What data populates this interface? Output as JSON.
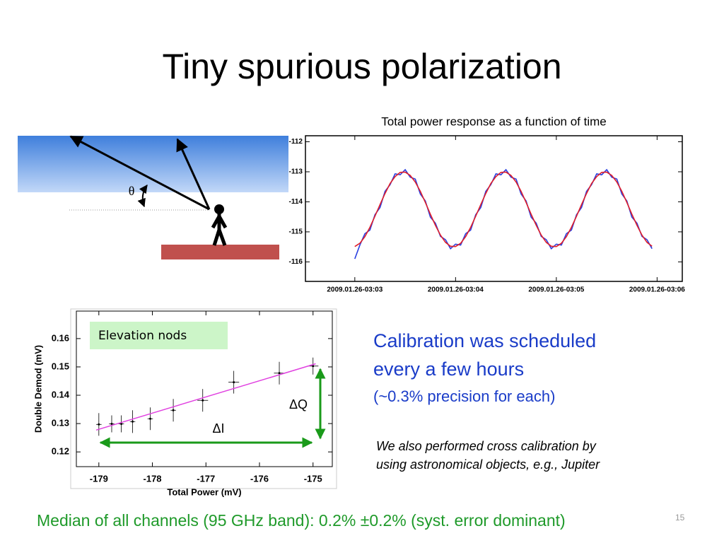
{
  "title": "Tiny spurious polarization",
  "diagram": {
    "angle_label": "θ"
  },
  "chart_data": [
    {
      "type": "line",
      "title": "Total power response as a function of time",
      "x": [
        183.0,
        183.05,
        183.1,
        183.15,
        183.2,
        183.25,
        183.3,
        183.35,
        183.4,
        183.45,
        183.5,
        183.55,
        183.6,
        183.65,
        183.7,
        183.75,
        183.8,
        183.85,
        183.9,
        183.95,
        184.0,
        184.05,
        184.1,
        184.15,
        184.2,
        184.25,
        184.3,
        184.35,
        184.4,
        184.45,
        184.5,
        184.55,
        184.6,
        184.65,
        184.7,
        184.75,
        184.8,
        184.85,
        184.9,
        184.95,
        185.0,
        185.05,
        185.1,
        185.15,
        185.2,
        185.25,
        185.3,
        185.35,
        185.4,
        185.45,
        185.5,
        185.55,
        185.6,
        185.65,
        185.7,
        185.75,
        185.8,
        185.85,
        185.9,
        185.95
      ],
      "series": [
        {
          "color": "#2a3fe0",
          "values": [
            -115.9,
            -115.44,
            -115.06,
            -114.94,
            -114.43,
            -114.19,
            -113.65,
            -113.43,
            -113.07,
            -113.1,
            -112.93,
            -113.18,
            -113.24,
            -113.74,
            -113.97,
            -114.51,
            -114.71,
            -115.15,
            -115.26,
            -115.56,
            -115.41,
            -115.44,
            -115.06,
            -114.94,
            -114.43,
            -114.19,
            -113.65,
            -113.43,
            -113.07,
            -113.1,
            -112.93,
            -113.18,
            -113.24,
            -113.74,
            -113.97,
            -114.51,
            -114.71,
            -115.15,
            -115.26,
            -115.56,
            -115.41,
            -115.44,
            -115.06,
            -114.94,
            -114.43,
            -114.19,
            -113.65,
            -113.43,
            -113.07,
            -113.1,
            -112.93,
            -113.18,
            -113.24,
            -113.74,
            -113.97,
            -114.51,
            -114.71,
            -115.15,
            -115.26,
            -115.56
          ]
        },
        {
          "color": "#e01e2a",
          "values": [
            -115.49,
            -115.38,
            -115.16,
            -114.85,
            -114.48,
            -114.09,
            -113.72,
            -113.39,
            -113.16,
            -113.02,
            -113.01,
            -113.12,
            -113.34,
            -113.65,
            -114.02,
            -114.41,
            -114.78,
            -115.11,
            -115.35,
            -115.48,
            -115.49,
            -115.38,
            -115.16,
            -114.85,
            -114.48,
            -114.09,
            -113.72,
            -113.39,
            -113.16,
            -113.02,
            -113.01,
            -113.12,
            -113.34,
            -113.65,
            -114.02,
            -114.41,
            -114.78,
            -115.11,
            -115.35,
            -115.48,
            -115.49,
            -115.38,
            -115.16,
            -114.85,
            -114.48,
            -114.09,
            -113.72,
            -113.39,
            -113.16,
            -113.02,
            -113.01,
            -113.12,
            -113.34,
            -113.65,
            -114.02,
            -114.41,
            -114.78,
            -115.11,
            -115.35,
            -115.48
          ]
        }
      ],
      "xlim": [
        182.51,
        186.25
      ],
      "xticks": [
        {
          "value": 183,
          "label": "2009.01.26-03:03"
        },
        {
          "value": 184,
          "label": "2009.01.26-03:04"
        },
        {
          "value": 185,
          "label": "2009.01.26-03:05"
        },
        {
          "value": 186,
          "label": "2009.01.26-03:06"
        }
      ],
      "ylim": [
        -116.65,
        -111.8
      ],
      "yticks": [
        -112,
        -113,
        -114,
        -115,
        -116
      ]
    },
    {
      "type": "scatter",
      "x_label": "Total Power (mV)",
      "y_label": "Double Demod (mV)",
      "annotations": [
        "Elevation nods",
        "ΔQ",
        "ΔI"
      ],
      "series": [
        {
          "type": "errorbar",
          "color": "#000000",
          "x": [
            -179.0,
            -178.76,
            -178.58,
            -178.37,
            -178.04,
            -177.61,
            -177.06,
            -176.48,
            -175.63,
            -175.0
          ],
          "values": [
            0.1297,
            0.1299,
            0.1299,
            0.1307,
            0.1317,
            0.1347,
            0.1382,
            0.1446,
            0.1478,
            0.1503
          ],
          "y_errors": [
            0.004,
            0.003,
            0.003,
            0.004,
            0.004,
            0.004,
            0.004,
            0.004,
            0.004,
            0.003
          ],
          "x_errors": [
            0.05,
            0.05,
            0.05,
            0.05,
            0.05,
            0.05,
            0.1,
            0.1,
            0.1,
            0.1
          ]
        },
        {
          "type": "line",
          "color": "#e040e0",
          "x": [
            -179.05,
            -174.95
          ],
          "values": [
            0.1277,
            0.1511
          ]
        }
      ],
      "xlim": [
        -179.42,
        -174.64
      ],
      "xticks": [
        -179,
        -178,
        -177,
        -176,
        -175
      ],
      "ylim": [
        0.1148,
        0.1697
      ],
      "yticks": [
        0.12,
        0.13,
        0.14,
        0.15,
        0.16
      ]
    }
  ],
  "text": {
    "calibration": [
      "Calibration was scheduled",
      "every a few hours"
    ],
    "precision": "(~0.3% precision for each)",
    "cross": [
      "We also performed cross calibration by",
      "using astronomical objects, e.g., Jupiter"
    ],
    "median": "Median of all channels (95 GHz band): 0.2% ±0.2% (syst. error dominant)"
  },
  "page_number": "15"
}
